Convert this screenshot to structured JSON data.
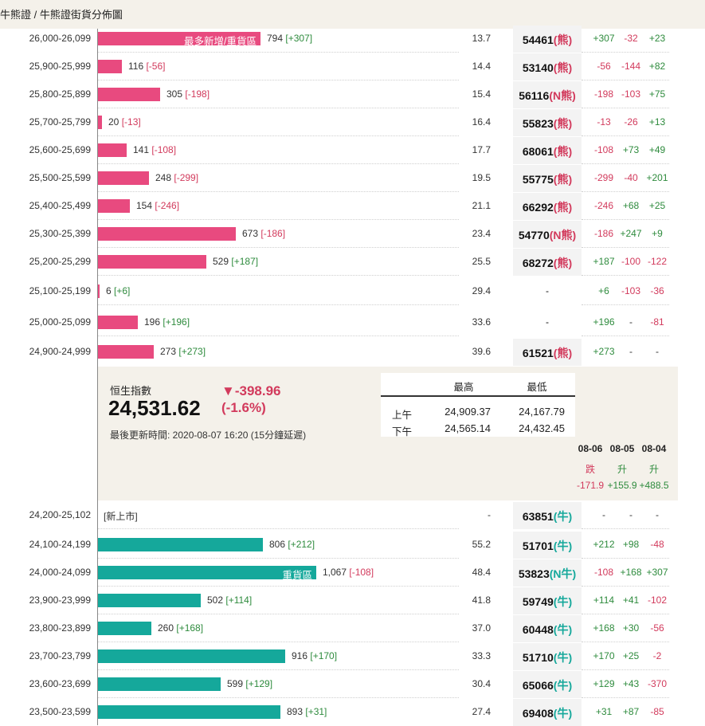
{
  "breadcrumb": "牛熊證 / 牛熊證街貨分佈圖",
  "index": {
    "name": "恒生指數",
    "value": "24,531.62",
    "change_arrow": "▼",
    "change": "-398.96",
    "change_pct": "(-1.6%)",
    "updated": "最後更新時間: 2020-08-07 16:20 (15分鐘延遲)",
    "high_label": "最高",
    "low_label": "最低",
    "sessions": [
      {
        "name": "上午",
        "high": "24,909.37",
        "low": "24,167.79"
      },
      {
        "name": "下午",
        "high": "24,565.14",
        "low": "24,432.45"
      }
    ],
    "history": [
      {
        "date": "08-06",
        "dir": "跌",
        "chg": "-171.9",
        "sign": "neg"
      },
      {
        "date": "08-05",
        "dir": "升",
        "chg": "+155.9",
        "sign": "pos"
      },
      {
        "date": "08-04",
        "dir": "升",
        "chg": "+488.5",
        "sign": "pos"
      }
    ]
  },
  "chart_data": {
    "type": "bar",
    "bear_rows": [
      {
        "range": "26,000-26,099",
        "value": 794,
        "value_label": "794",
        "change": "[+307]",
        "inside": "最多新增/重貨區",
        "pct": "13.7",
        "code": "54461",
        "suffix": "(熊)",
        "d1": "+307",
        "d2": "-32",
        "d3": "+23"
      },
      {
        "range": "25,900-25,999",
        "value": 116,
        "value_label": "116",
        "change": "[-56]",
        "pct": "14.4",
        "code": "53140",
        "suffix": "(熊)",
        "d1": "-56",
        "d2": "-144",
        "d3": "+82"
      },
      {
        "range": "25,800-25,899",
        "value": 305,
        "value_label": "305",
        "change": "[-198]",
        "pct": "15.4",
        "code": "56116",
        "suffix": "(N熊)",
        "d1": "-198",
        "d2": "-103",
        "d3": "+75"
      },
      {
        "range": "25,700-25,799",
        "value": 20,
        "value_label": "20",
        "change": "[-13]",
        "pct": "16.4",
        "code": "55823",
        "suffix": "(熊)",
        "d1": "-13",
        "d2": "-26",
        "d3": "+13"
      },
      {
        "range": "25,600-25,699",
        "value": 141,
        "value_label": "141",
        "change": "[-108]",
        "pct": "17.7",
        "code": "68061",
        "suffix": "(熊)",
        "d1": "-108",
        "d2": "+73",
        "d3": "+49"
      },
      {
        "range": "25,500-25,599",
        "value": 248,
        "value_label": "248",
        "change": "[-299]",
        "pct": "19.5",
        "code": "55775",
        "suffix": "(熊)",
        "d1": "-299",
        "d2": "-40",
        "d3": "+201"
      },
      {
        "range": "25,400-25,499",
        "value": 154,
        "value_label": "154",
        "change": "[-246]",
        "pct": "21.1",
        "code": "66292",
        "suffix": "(熊)",
        "d1": "-246",
        "d2": "+68",
        "d3": "+25"
      },
      {
        "range": "25,300-25,399",
        "value": 673,
        "value_label": "673",
        "change": "[-186]",
        "pct": "23.4",
        "code": "54770",
        "suffix": "(N熊)",
        "d1": "-186",
        "d2": "+247",
        "d3": "+9"
      },
      {
        "range": "25,200-25,299",
        "value": 529,
        "value_label": "529",
        "change": "[+187]",
        "pct": "25.5",
        "code": "68272",
        "suffix": "(熊)",
        "d1": "+187",
        "d2": "-100",
        "d3": "-122"
      },
      {
        "range": "25,100-25,199",
        "value": 6,
        "value_label": "6",
        "change": "[+6]",
        "pct": "29.4",
        "code": "-",
        "suffix": "",
        "d1": "+6",
        "d2": "-103",
        "d3": "-36"
      },
      {
        "range": "25,000-25,099",
        "value": 196,
        "value_label": "196",
        "change": "[+196]",
        "pct": "33.6",
        "code": "-",
        "suffix": "",
        "d1": "+196",
        "d2": "-",
        "d3": "-81"
      },
      {
        "range": "24,900-24,999",
        "value": 273,
        "value_label": "273",
        "change": "[+273]",
        "pct": "39.6",
        "code": "61521",
        "suffix": "(熊)",
        "d1": "+273",
        "d2": "-",
        "d3": "-"
      }
    ],
    "bull_rows": [
      {
        "range": "24,200-25,102",
        "value": 0,
        "value_label": "",
        "change": "",
        "new_listing": "[新上市]",
        "pct": "-",
        "code": "63851",
        "suffix": "(牛)",
        "d1": "-",
        "d2": "-",
        "d3": "-"
      },
      {
        "range": "24,100-24,199",
        "value": 806,
        "value_label": "806",
        "change": "[+212]",
        "pct": "55.2",
        "code": "51701",
        "suffix": "(牛)",
        "d1": "+212",
        "d2": "+98",
        "d3": "-48"
      },
      {
        "range": "24,000-24,099",
        "value": 1067,
        "value_label": "1,067",
        "change": "[-108]",
        "inside": "重貨區",
        "pct": "48.4",
        "code": "53823",
        "suffix": "(N牛)",
        "d1": "-108",
        "d2": "+168",
        "d3": "+307"
      },
      {
        "range": "23,900-23,999",
        "value": 502,
        "value_label": "502",
        "change": "[+114]",
        "pct": "41.8",
        "code": "59749",
        "suffix": "(牛)",
        "d1": "+114",
        "d2": "+41",
        "d3": "-102"
      },
      {
        "range": "23,800-23,899",
        "value": 260,
        "value_label": "260",
        "change": "[+168]",
        "pct": "37.0",
        "code": "60448",
        "suffix": "(牛)",
        "d1": "+168",
        "d2": "+30",
        "d3": "-56"
      },
      {
        "range": "23,700-23,799",
        "value": 916,
        "value_label": "916",
        "change": "[+170]",
        "pct": "33.3",
        "code": "51710",
        "suffix": "(牛)",
        "d1": "+170",
        "d2": "+25",
        "d3": "-2"
      },
      {
        "range": "23,600-23,699",
        "value": 599,
        "value_label": "599",
        "change": "[+129]",
        "pct": "30.4",
        "code": "65066",
        "suffix": "(牛)",
        "d1": "+129",
        "d2": "+43",
        "d3": "-370"
      },
      {
        "range": "23,500-23,599",
        "value": 893,
        "value_label": "893",
        "change": "[+31]",
        "pct": "27.4",
        "code": "69408",
        "suffix": "(牛)",
        "d1": "+31",
        "d2": "+87",
        "d3": "-85"
      }
    ],
    "colors": {
      "bear": "#e84a7f",
      "bull": "#15a89b",
      "pos": "#2e8b3d",
      "neg": "#d23a5c"
    }
  }
}
